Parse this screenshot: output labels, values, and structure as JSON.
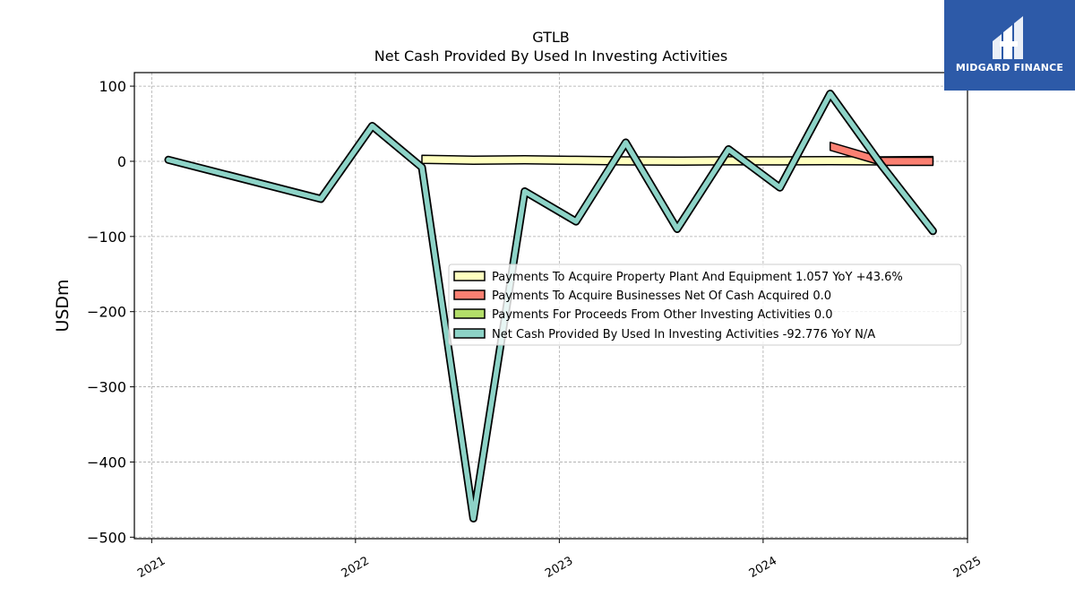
{
  "chart_data": {
    "type": "line",
    "title": "GTLB",
    "subtitle": "Net Cash Provided By Used In Investing Activities",
    "ylabel": "USDm",
    "xlabel": "",
    "ylim": [
      -502,
      118
    ],
    "xlim": [
      "2020-12-01",
      "2025-01-01"
    ],
    "yticks": [
      100,
      0,
      -100,
      -200,
      -300,
      -400,
      -500
    ],
    "ytick_labels": [
      "100",
      "0",
      "−100",
      "−200",
      "−300",
      "−400",
      "−500"
    ],
    "xticks": [
      "2021-01-01",
      "2022-01-01",
      "2023-01-01",
      "2024-01-01",
      "2025-01-01"
    ],
    "xtick_labels": [
      "2021",
      "2022",
      "2023",
      "2024",
      "2025"
    ],
    "grid": true,
    "legend_position": "center-right",
    "series": [
      {
        "name": "Payments To Acquire Property Plant And Equipment",
        "legend": "Payments To Acquire Property Plant And Equipment  1.057 YoY +43.6%",
        "color": "#ffffbf",
        "style": "band",
        "x": [
          "2022-04-30",
          "2022-07-31",
          "2022-10-31",
          "2023-01-31",
          "2023-04-30",
          "2023-07-31",
          "2023-10-31",
          "2024-01-31",
          "2024-04-30",
          "2024-07-31",
          "2024-10-31"
        ],
        "values": [
          2.7,
          1.4,
          2.0,
          1.3,
          0.5,
          0.2,
          0.7,
          0.6,
          0.9,
          0.6,
          1.057
        ]
      },
      {
        "name": "Payments To Acquire Businesses Net Of Cash Acquired",
        "legend": "Payments To Acquire Businesses Net Of Cash Acquired  0.0",
        "color": "#fb8072",
        "style": "band",
        "x": [
          "2024-04-30",
          "2024-07-31",
          "2024-10-31"
        ],
        "values": [
          20,
          0,
          0
        ]
      },
      {
        "name": "Payments For Proceeds From Other Investing Activities",
        "legend": "Payments For Proceeds From Other Investing Activities  0.0",
        "color": "#b3de69",
        "style": "band",
        "x": [],
        "values": []
      },
      {
        "name": "Net Cash Provided By Used In Investing Activities",
        "legend": "Net Cash Provided By Used In Investing Activities  -92.776 YoY N/A",
        "color": "#8dd3c7",
        "style": "thick-line",
        "x": [
          "2021-01-31",
          "2021-10-31",
          "2022-01-31",
          "2022-04-30",
          "2022-07-31",
          "2022-10-31",
          "2023-01-31",
          "2023-04-30",
          "2023-07-31",
          "2023-10-31",
          "2024-01-31",
          "2024-04-30",
          "2024-07-31",
          "2024-10-31"
        ],
        "values": [
          2,
          -50,
          47,
          -8,
          -475,
          -40,
          -80,
          25,
          -90,
          16,
          -35,
          90,
          -5,
          -92.776
        ]
      }
    ]
  },
  "logo": {
    "text": "MIDGARD FINANCE",
    "color": "#2d5aa8"
  }
}
